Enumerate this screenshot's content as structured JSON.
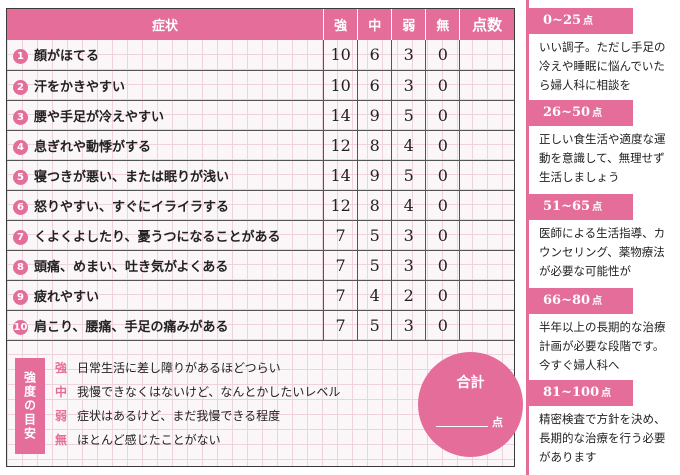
{
  "header": {
    "symptom": "症状",
    "strong": "強",
    "medium": "中",
    "weak": "弱",
    "none": "無",
    "points": "点数"
  },
  "rows": [
    {
      "no": "1",
      "label": "顔がほてる",
      "strong": "10",
      "medium": "6",
      "weak": "3",
      "none": "0"
    },
    {
      "no": "2",
      "label": "汗をかきやすい",
      "strong": "10",
      "medium": "6",
      "weak": "3",
      "none": "0"
    },
    {
      "no": "3",
      "label": "腰や手足が冷えやすい",
      "strong": "14",
      "medium": "9",
      "weak": "5",
      "none": "0"
    },
    {
      "no": "4",
      "label": "息ぎれや動悸がする",
      "strong": "12",
      "medium": "8",
      "weak": "4",
      "none": "0"
    },
    {
      "no": "5",
      "label": "寝つきが悪い、または眠りが浅い",
      "strong": "14",
      "medium": "9",
      "weak": "5",
      "none": "0"
    },
    {
      "no": "6",
      "label": "怒りやすい、すぐにイライラする",
      "strong": "12",
      "medium": "8",
      "weak": "4",
      "none": "0"
    },
    {
      "no": "7",
      "label": "くよくよしたり、憂うつになることがある",
      "strong": "7",
      "medium": "5",
      "weak": "3",
      "none": "0"
    },
    {
      "no": "8",
      "label": "頭痛、めまい、吐き気がよくある",
      "strong": "7",
      "medium": "5",
      "weak": "3",
      "none": "0"
    },
    {
      "no": "9",
      "label": "疲れやすい",
      "strong": "7",
      "medium": "4",
      "weak": "2",
      "none": "0"
    },
    {
      "no": "10",
      "label": "肩こり、腰痛、手足の痛みがある",
      "strong": "7",
      "medium": "5",
      "weak": "3",
      "none": "0"
    }
  ],
  "legend": {
    "title": "強度の目安",
    "items": [
      {
        "key": "強",
        "text": "日常生活に差し障りがあるほどつらい"
      },
      {
        "key": "中",
        "text": "我慢できなくはないけど、なんとかしたいレベル"
      },
      {
        "key": "弱",
        "text": "症状はあるけど、まだ我慢できる程度"
      },
      {
        "key": "無",
        "text": "ほとんど感じたことがない"
      }
    ]
  },
  "total": {
    "label": "合計",
    "unit": "点"
  },
  "results": [
    {
      "range": "0~25",
      "unit": "点",
      "lines": [
        "いい調子。ただし手足の",
        "冷えや睡眠に悩んでいた",
        "ら婦人科に相談を"
      ]
    },
    {
      "range": "26~50",
      "unit": "点",
      "lines": [
        "正しい食生活や適度な運",
        "動を意識して、無理せず",
        "生活しましょう"
      ]
    },
    {
      "range": "51~65",
      "unit": "点",
      "lines": [
        "医師による生活指導、カ",
        "ウンセリング、薬物療法",
        "が必要な可能性が"
      ]
    },
    {
      "range": "66~80",
      "unit": "点",
      "lines": [
        "半年以上の長期的な治療",
        "計画が必要な段階です。",
        "今すぐ婦人科へ"
      ]
    },
    {
      "range": "81~100",
      "unit": "点",
      "lines": [
        "精密検査で方針を決め、",
        "長期的な治療を行う必要",
        "があります"
      ]
    }
  ],
  "colors": {
    "accent": "#e46d99",
    "grid": "#eed3dc"
  }
}
